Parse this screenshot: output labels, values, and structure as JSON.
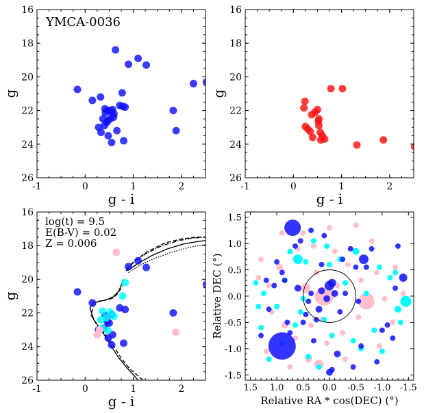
{
  "colors": {
    "members": "#1010ff",
    "field": "#ff1010",
    "cyan": "#00ffff",
    "pink": "#ffc0cb"
  },
  "chart_data": [
    {
      "type": "scatter",
      "id": "cmd-members",
      "title": "",
      "annotation": "YMCA-0036",
      "xlabel": "g - i",
      "ylabel": "g",
      "xlim": [
        -1,
        2.5
      ],
      "ylim": [
        26,
        16
      ],
      "xticks": [
        "-1",
        "0",
        "1",
        "2"
      ],
      "yticks": [
        "16",
        "18",
        "20",
        "22",
        "24",
        "26"
      ],
      "series": [
        {
          "name": "members",
          "color": "#1010ff",
          "x": [
            0.63,
            1.1,
            0.9,
            1.27,
            -0.16,
            0.15,
            0.77,
            0.83,
            0.55,
            0.46,
            0.6,
            0.72,
            0.78,
            0.32,
            0.41,
            0.57,
            0.5,
            0.42,
            0.59,
            0.37,
            0.47,
            0.52,
            0.45,
            0.28,
            0.4,
            0.66,
            0.33,
            0.48,
            0.8,
            0.55,
            2.25,
            2.52,
            1.83,
            1.89
          ],
          "y": [
            18.4,
            18.9,
            19.25,
            19.3,
            20.75,
            21.4,
            20.95,
            21.8,
            22.1,
            22.0,
            22.2,
            21.7,
            21.75,
            21.2,
            21.9,
            21.95,
            22.0,
            22.15,
            22.4,
            22.5,
            22.6,
            22.5,
            22.7,
            23.0,
            22.9,
            23.2,
            23.3,
            23.5,
            23.8,
            23.9,
            20.4,
            20.3,
            22.0,
            23.2
          ]
        }
      ]
    },
    {
      "type": "scatter",
      "id": "cmd-field",
      "xlabel": "g - i",
      "ylabel": "g",
      "xlim": [
        -1,
        2.5
      ],
      "ylim": [
        26,
        16
      ],
      "xticks": [
        "-1",
        "0",
        "1",
        "2"
      ],
      "yticks": [
        "16",
        "18",
        "20",
        "22",
        "24",
        "26"
      ],
      "series": [
        {
          "name": "field",
          "color": "#ff1010",
          "x": [
            0.78,
            1.02,
            0.24,
            0.22,
            0.5,
            0.45,
            0.38,
            0.53,
            0.52,
            0.53,
            0.25,
            0.3,
            0.35,
            0.56,
            0.4,
            0.6,
            0.65,
            0.57,
            1.32,
            1.87,
            2.52
          ],
          "y": [
            20.7,
            20.7,
            21.45,
            21.85,
            21.95,
            22.1,
            22.25,
            22.5,
            22.65,
            22.9,
            22.95,
            23.1,
            23.25,
            23.3,
            23.6,
            23.5,
            23.7,
            23.75,
            24.05,
            23.75,
            24.15
          ]
        }
      ]
    },
    {
      "type": "scatter",
      "id": "cmd-isochrone",
      "annotation_lines": [
        "log(t) = 9.5",
        "E(B-V) = 0.02",
        "Z = 0.006"
      ],
      "xlabel": "g - i",
      "ylabel": "g",
      "xlim": [
        -1,
        2.5
      ],
      "ylim": [
        26,
        16
      ],
      "xticks": [
        "-1",
        "0",
        "1",
        "2"
      ],
      "yticks": [
        "16",
        "18",
        "20",
        "22",
        "24",
        "26"
      ],
      "series": [
        {
          "name": "members",
          "color": "#1010ff",
          "x": [
            0.9,
            1.27,
            -0.16,
            0.15,
            0.83,
            0.55,
            0.42,
            0.46,
            0.72,
            0.5,
            0.28,
            0.4,
            0.57,
            0.48,
            0.8,
            0.55,
            2.52,
            1.83,
            1.1
          ],
          "y": [
            19.25,
            19.3,
            20.75,
            21.4,
            21.8,
            22.1,
            22.15,
            22.5,
            21.7,
            22.6,
            23.0,
            22.9,
            23.3,
            23.5,
            23.8,
            23.9,
            20.3,
            22.0,
            18.9
          ]
        },
        {
          "name": "cyan",
          "color": "#00ffff",
          "x": [
            0.83,
            0.78,
            0.36,
            0.52,
            0.44,
            0.33,
            0.6,
            0.35,
            0.47
          ],
          "y": [
            20.2,
            21.0,
            21.9,
            21.95,
            22.3,
            22.4,
            22.2,
            22.9,
            23.05
          ]
        },
        {
          "name": "pink",
          "color": "#ffc0cb",
          "x": [
            0.65,
            1.88,
            0.3,
            0.25
          ],
          "y": [
            18.4,
            23.15,
            23.0,
            23.3
          ]
        }
      ],
      "isochrones": [
        {
          "style": "dashed",
          "x": [
            1.2,
            0.92,
            0.75,
            0.62,
            0.48,
            0.34,
            0.22,
            0.12,
            0.18,
            0.28,
            0.4,
            0.5,
            0.58,
            0.66,
            0.78
          ],
          "y": [
            26.0,
            25.3,
            24.7,
            24.1,
            23.5,
            23.0,
            22.6,
            22.1,
            21.6,
            21.3,
            21.25,
            21.2,
            21.1,
            20.9,
            20.4
          ]
        },
        {
          "style": "solid",
          "x": [
            1.1,
            0.85,
            0.68,
            0.55,
            0.42,
            0.3,
            0.18,
            0.1,
            0.18,
            0.32,
            0.46,
            0.58,
            0.7,
            0.8
          ],
          "y": [
            26.0,
            25.2,
            24.6,
            24.0,
            23.4,
            22.9,
            22.4,
            21.7,
            21.4,
            21.3,
            21.2,
            21.05,
            20.7,
            20.0
          ]
        },
        {
          "style": "dashdot",
          "x": [
            0.85,
            1.0,
            1.25,
            1.6,
            1.95,
            2.25,
            2.5
          ],
          "y": [
            19.5,
            19.0,
            18.5,
            18.0,
            17.7,
            17.55,
            17.5
          ]
        },
        {
          "style": "dashed",
          "x": [
            0.85,
            1.05,
            1.3,
            1.65,
            2.0,
            2.3,
            2.5
          ],
          "y": [
            19.4,
            18.85,
            18.35,
            17.85,
            17.6,
            17.5,
            17.48
          ]
        },
        {
          "style": "dotted",
          "x": [
            0.9,
            1.15,
            1.45,
            1.8,
            2.1,
            2.35,
            2.5
          ],
          "y": [
            19.6,
            19.15,
            18.75,
            18.4,
            18.15,
            18.0,
            17.95
          ]
        },
        {
          "style": "solid",
          "x": [
            0.88,
            1.1,
            1.38,
            1.7,
            2.05,
            2.35,
            2.5
          ],
          "y": [
            19.5,
            19.05,
            18.6,
            18.2,
            17.9,
            17.75,
            17.7
          ]
        }
      ]
    },
    {
      "type": "scatter",
      "id": "sky-positions",
      "xlabel": "Relative RA * cos(DEC) (°)",
      "ylabel": "Relative DEC (°)",
      "xlim": [
        1.6,
        -1.6
      ],
      "ylim": [
        -1.6,
        1.6
      ],
      "xticks": [
        "1.5",
        "1.0",
        "0.5",
        "0.0",
        "-0.5",
        "-1.0",
        "-1.5"
      ],
      "yticks": [
        "1.5",
        "1.0",
        "0.5",
        "0.0",
        "-0.5",
        "-1.0",
        "-1.5"
      ],
      "circle_radius": 0.5,
      "series": [
        {
          "name": "pink",
          "color": "#ffc0cb",
          "x": [
            0.1,
            -0.7,
            0.45,
            1.3,
            -1.45,
            0.95,
            0.2,
            0.4,
            -0.3,
            0.85,
            -0.9,
            1.15,
            -1.2,
            0.0,
            0.6,
            -0.5,
            0.3,
            -0.1,
            1.1,
            -1.4,
            0.75,
            -0.25,
            0.5,
            -0.8,
            0.25,
            -0.6,
            1.35,
            -1.05,
            0.05,
            0.9,
            -0.35,
            0.65,
            -0.95,
            0.15,
            1.2,
            -1.25,
            0.55,
            -0.55,
            0.35,
            -0.15
          ],
          "y": [
            0.0,
            -0.1,
            0.15,
            0.7,
            -0.1,
            0.55,
            -1.3,
            -1.2,
            -1.2,
            -0.55,
            0.45,
            0.2,
            -0.5,
            1.3,
            0.9,
            1.35,
            0.95,
            0.85,
            -0.3,
            0.05,
            -1.35,
            -0.7,
            1.2,
            1.05,
            0.45,
            0.3,
            0.35,
            -0.05,
            -0.9,
            1.2,
            0.6,
            -0.8,
            -0.95,
            -0.45,
            -1.05,
            0.55,
            -0.3,
            -0.4,
            -0.55,
            0.2
          ],
          "s": [
            14,
            12,
            7,
            4,
            5,
            5,
            7,
            5,
            4,
            5,
            4,
            4,
            4,
            4,
            4,
            4,
            4,
            4,
            4,
            4,
            4,
            4,
            4,
            4,
            4,
            4,
            4,
            4,
            4,
            4,
            4,
            4,
            4,
            4,
            4,
            4,
            4,
            4,
            4,
            4
          ]
        },
        {
          "name": "cyan",
          "color": "#00ffff",
          "x": [
            0.6,
            -1.45,
            0.45,
            -1.3,
            1.4,
            -0.5,
            0.0,
            0.75,
            -0.95,
            0.3,
            -1.15,
            1.25,
            -0.2,
            0.85,
            -0.7,
            0.1,
            1.0,
            -1.35,
            0.55,
            -0.45,
            1.3,
            -0.05,
            0.9,
            -1.0,
            0.4,
            -0.6,
            0.2,
            1.15,
            -0.85,
            0.65,
            -0.3,
            1.35,
            -1.25,
            0.05,
            0.5
          ],
          "y": [
            0.7,
            -0.1,
            0.65,
            -0.25,
            0.25,
            0.85,
            0.6,
            0.85,
            0.55,
            1.05,
            0.35,
            0.05,
            0.7,
            0.3,
            0.05,
            -0.45,
            -0.2,
            -0.5,
            -0.3,
            -0.85,
            -0.6,
            -0.75,
            -0.9,
            -1.05,
            -1.15,
            -1.0,
            -1.35,
            -1.2,
            -0.65,
            -0.55,
            0.25,
            -0.2,
            0.45,
            0.95,
            -0.05
          ],
          "s": [
            7,
            8,
            4,
            5,
            4,
            5,
            4,
            4,
            4,
            4,
            4,
            4,
            4,
            4,
            4,
            4,
            4,
            4,
            4,
            4,
            4,
            4,
            4,
            4,
            4,
            4,
            4,
            4,
            4,
            4,
            4,
            4,
            4,
            4,
            4
          ]
        },
        {
          "name": "members",
          "color": "#1010ff",
          "x": [
            0.7,
            0.9,
            0.0,
            -0.05,
            0.05,
            -0.1,
            0.15,
            0.35,
            -0.3,
            0.6,
            -0.65,
            1.2,
            -1.4,
            -0.5,
            0.4,
            0.45,
            -0.2,
            0.2,
            1.0,
            -1.0,
            0.8,
            -0.8,
            0.25,
            -0.4,
            1.3,
            -1.3,
            0.55,
            -0.55,
            0.1,
            -0.15,
            0.9,
            -1.1,
            0.35,
            -0.7,
            1.15,
            -1.25,
            0.5,
            0.0,
            -0.9,
            0.75,
            -0.45,
            0.3,
            -0.05,
            0.65,
            -0.25,
            1.05,
            -1.2,
            0.15,
            -0.6,
            0.85
          ],
          "y": [
            1.3,
            -0.95,
            0.2,
            0.25,
            -0.05,
            0.05,
            0.1,
            0.05,
            0.05,
            0.15,
            0.7,
            0.3,
            0.35,
            0.55,
            -0.1,
            -0.35,
            -0.3,
            -0.25,
            0.65,
            -0.65,
            -0.5,
            0.9,
            -0.45,
            0.9,
            -0.75,
            0.95,
            1.05,
            -0.1,
            1.15,
            -1.1,
            0.45,
            -0.55,
            1.25,
            0.55,
            -0.25,
            0.15,
            -0.5,
            -1.45,
            -1.25,
            -0.7,
            -1.35,
            -0.85,
            -1.4,
            0.95,
            0.7,
            0.2,
            -0.8,
            0.6,
            -0.95,
            0.3
          ],
          "s": [
            12,
            20,
            7,
            6,
            5,
            5,
            5,
            4,
            4,
            5,
            7,
            4,
            6,
            4,
            4,
            4,
            4,
            5,
            4,
            4,
            4,
            4,
            4,
            4,
            4,
            4,
            4,
            4,
            4,
            5,
            4,
            4,
            4,
            4,
            4,
            4,
            4,
            5,
            4,
            4,
            4,
            4,
            4,
            4,
            4,
            4,
            4,
            4,
            4,
            4
          ]
        }
      ]
    }
  ]
}
